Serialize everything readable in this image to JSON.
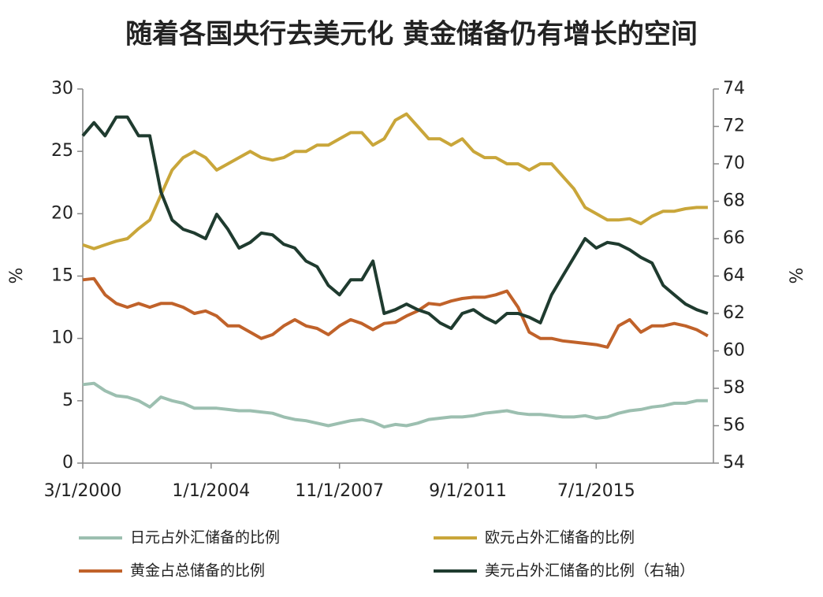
{
  "chart_data": {
    "type": "line",
    "title": "随着各国央行去美元化 黄金储备仍有增长的空间",
    "ylabel": "%",
    "y2label": "%",
    "x": [
      0,
      4,
      8,
      12,
      16,
      20,
      24,
      28,
      32,
      36,
      40,
      44,
      48,
      52,
      56,
      60,
      64,
      68,
      72,
      76,
      80,
      84,
      88,
      92,
      96,
      100,
      104,
      108,
      112,
      116,
      120,
      124,
      128,
      132,
      136,
      140,
      144,
      148,
      152,
      156,
      160,
      164,
      168,
      172,
      176,
      180,
      184,
      188,
      192,
      196,
      200,
      204,
      208,
      212,
      216,
      220,
      224
    ],
    "xlim": [
      0,
      226
    ],
    "xticks": [
      {
        "value": 0,
        "label": "3/1/2000"
      },
      {
        "value": 46,
        "label": "1/1/2004"
      },
      {
        "value": 92,
        "label": "11/1/2007"
      },
      {
        "value": 138,
        "label": "9/1/2011"
      },
      {
        "value": 184,
        "label": "7/1/2015"
      }
    ],
    "ylim": [
      0,
      30
    ],
    "yticks": [
      0,
      5,
      10,
      15,
      20,
      25,
      30
    ],
    "y2lim": [
      54,
      74
    ],
    "y2ticks": [
      54,
      56,
      58,
      60,
      62,
      64,
      66,
      68,
      70,
      72,
      74
    ],
    "series": [
      {
        "name": "日元占外汇储备的比例",
        "color": "#9cbfb0",
        "values": [
          6.3,
          6.4,
          5.8,
          5.4,
          5.3,
          5,
          4.5,
          5.3,
          5,
          4.8,
          4.4,
          4.4,
          4.4,
          4.3,
          4.2,
          4.2,
          4.1,
          4,
          3.7,
          3.5,
          3.4,
          3.2,
          3,
          3.2,
          3.4,
          3.5,
          3.3,
          2.9,
          3.1,
          3,
          3.2,
          3.5,
          3.6,
          3.7,
          3.7,
          3.8,
          4,
          4.1,
          4.2,
          4,
          3.9,
          3.9,
          3.8,
          3.7,
          3.7,
          3.8,
          3.6,
          3.7,
          4,
          4.2,
          4.3,
          4.5,
          4.6,
          4.8,
          4.8,
          5,
          5
        ]
      },
      {
        "name": "欧元占外汇储备的比例",
        "color": "#c9a63a",
        "values": [
          17.5,
          17.2,
          17.5,
          17.8,
          18,
          18.8,
          19.5,
          21.5,
          23.5,
          24.5,
          25,
          24.5,
          23.5,
          24,
          24.5,
          25,
          24.5,
          24.3,
          24.5,
          25,
          25,
          25.5,
          25.5,
          26,
          26.5,
          26.5,
          25.5,
          26,
          27.5,
          28,
          27,
          26,
          26,
          25.5,
          26,
          25,
          24.5,
          24.5,
          24,
          24,
          23.5,
          24,
          24,
          23,
          22,
          20.5,
          20,
          19.5,
          19.5,
          19.6,
          19.2,
          19.8,
          20.2,
          20.2,
          20.4,
          20.5,
          20.5
        ]
      },
      {
        "name": "黄金占总储备的比例",
        "color": "#c0622a",
        "values": [
          14.7,
          14.8,
          13.5,
          12.8,
          12.5,
          12.8,
          12.5,
          12.8,
          12.8,
          12.5,
          12,
          12.2,
          11.8,
          11,
          11,
          10.5,
          10,
          10.3,
          11,
          11.5,
          11,
          10.8,
          10.3,
          11,
          11.5,
          11.2,
          10.7,
          11.2,
          11.3,
          11.8,
          12.2,
          12.8,
          12.7,
          13,
          13.2,
          13.3,
          13.3,
          13.5,
          13.8,
          12.5,
          10.5,
          10,
          10,
          9.8,
          9.7,
          9.6,
          9.5,
          9.3,
          11,
          11.5,
          10.5,
          11,
          11,
          11.2,
          11,
          10.7,
          10.2
        ]
      },
      {
        "name": "美元占外汇储备的比例（右轴）",
        "color": "#1f3b2f",
        "axis": "y2",
        "values": [
          71.5,
          72.2,
          71.5,
          72.5,
          72.5,
          71.5,
          71.5,
          68.5,
          67,
          66.5,
          66.3,
          66,
          67.3,
          66.5,
          65.5,
          65.8,
          66.3,
          66.2,
          65.7,
          65.5,
          64.8,
          64.5,
          63.5,
          63,
          63.8,
          63.8,
          64.8,
          62,
          62.2,
          62.5,
          62.2,
          62,
          61.5,
          61.2,
          62,
          62.2,
          61.8,
          61.5,
          62,
          62,
          61.8,
          61.5,
          63,
          64,
          65,
          66,
          65.5,
          65.8,
          65.7,
          65.4,
          65,
          64.7,
          63.5,
          63,
          62.5,
          62.2,
          62
        ]
      }
    ]
  }
}
